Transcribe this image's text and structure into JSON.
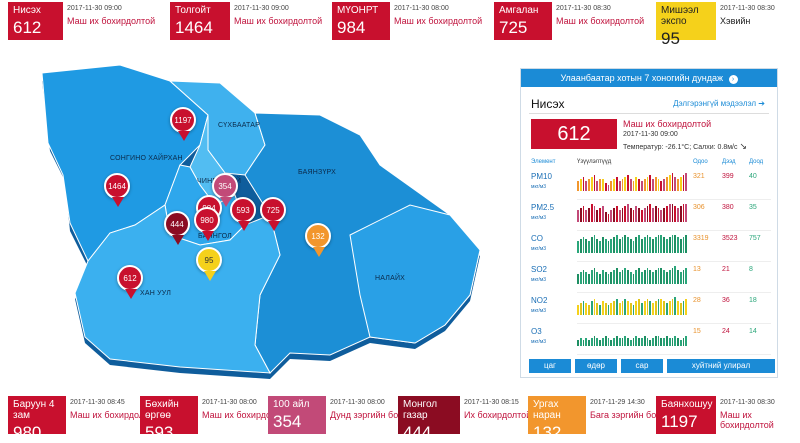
{
  "colors": {
    "very_high": "#c8102e",
    "very_high_dark": "#8b0c22",
    "high": "#c24a78",
    "moderate": "#f2962d",
    "good": "#f5d11b",
    "accent": "#1b8bd6"
  },
  "top_cards": [
    {
      "name": "Нисэх",
      "value": "612",
      "time": "2017-11-30 09:00",
      "status": "Маш их бохирдолтой",
      "color": "#c8102e"
    },
    {
      "name": "Толгойт",
      "value": "1464",
      "time": "2017-11-30 09:00",
      "status": "Маш их бохирдолтой",
      "color": "#c8102e"
    },
    {
      "name": "МҮОНРТ",
      "value": "984",
      "time": "2017-11-30 08:00",
      "status": "Маш их бохирдолтой",
      "color": "#c8102e"
    },
    {
      "name": "Амгалан",
      "value": "725",
      "time": "2017-11-30 08:30",
      "status": "Маш их бохирдолтой",
      "color": "#c8102e"
    },
    {
      "name": "Мишээл экспо",
      "value": "95",
      "time": "2017-11-30 08:30",
      "status": "Хэвийн",
      "color": "#f5d11b"
    }
  ],
  "bottom_cards": [
    {
      "name": "Баруун 4 зам",
      "value": "980",
      "time": "2017-11-30 08:45",
      "status": "Маш их бохирдолтой",
      "color": "#c8102e"
    },
    {
      "name": "Бөхийн өргөө",
      "value": "593",
      "time": "2017-11-30 08:00",
      "status": "Маш их бохирдолтой",
      "color": "#c8102e"
    },
    {
      "name": "100 айл",
      "value": "354",
      "time": "2017-11-30 08:00",
      "status": "Дунд зэргийн бохирдолтой",
      "color": "#c24a78"
    },
    {
      "name": "Монгол газар",
      "value": "444",
      "time": "2017-11-30 08:15",
      "status": "Их бохирдолтой",
      "color": "#8b0c22"
    },
    {
      "name": "Ургах наран",
      "value": "132",
      "time": "2017-11-29 14:30",
      "status": "Бага зэргийн бохирдолтой",
      "color": "#f2962d"
    },
    {
      "name": "Баянхошуу",
      "value": "1197",
      "time": "2017-11-30 08:30",
      "status": "Маш их бохирдолтой",
      "color": "#c8102e"
    }
  ],
  "map": {
    "districts": [
      "СОНГИНО ХАЙРХАН",
      "СҮХБААТАР",
      "ЧИНГЭЛТЭЙ",
      "БАЯНЗҮРХ",
      "БАЯНГОЛ",
      "ХАН УУЛ",
      "НАЛАЙХ"
    ],
    "pins": [
      {
        "value": "1197",
        "color": "#c8102e"
      },
      {
        "value": "1464",
        "color": "#c8102e"
      },
      {
        "value": "354",
        "color": "#c24a78"
      },
      {
        "value": "984",
        "color": "#c8102e"
      },
      {
        "value": "980",
        "color": "#c8102e"
      },
      {
        "value": "444",
        "color": "#8b0c22"
      },
      {
        "value": "593",
        "color": "#c8102e"
      },
      {
        "value": "725",
        "color": "#c8102e"
      },
      {
        "value": "132",
        "color": "#f2962d"
      },
      {
        "value": "95",
        "color": "#f5d11b"
      },
      {
        "value": "612",
        "color": "#c8102e"
      }
    ]
  },
  "panel": {
    "header": "Улаанбаатар хотын 7 хоногийн дундаж",
    "station": "Нисэх",
    "more_link": "Дэлгэрэнгүй мэдээлэл",
    "aqi": "612",
    "status": "Маш их бохирдолтой",
    "time": "2017-11-30 09:00",
    "weather": "Температур: -26.1°C; Салхи: 0.8м/с",
    "col_element": "Элемент",
    "col_history": "Үзүүлэлтүүд",
    "col_now": "Одоо",
    "col_high": "Дээд",
    "col_low": "Доод",
    "rows": [
      {
        "element": "PM10",
        "unit": "мкг/м3",
        "now": "321",
        "high": "399",
        "low": "40",
        "bars": [
          5,
          6,
          7,
          5,
          6,
          7,
          8,
          5,
          6,
          6,
          4,
          3,
          5,
          6,
          7,
          5,
          6,
          7,
          8,
          6,
          5,
          7,
          6,
          5,
          6,
          7,
          8,
          6,
          7,
          6,
          5,
          6,
          7,
          8,
          9,
          7,
          6,
          7,
          8,
          9
        ],
        "palette": [
          "#f2962d",
          "#c24a78",
          "#c8102e",
          "#f5d11b"
        ]
      },
      {
        "element": "PM2.5",
        "unit": "мкг/м3",
        "now": "306",
        "high": "380",
        "low": "35",
        "bars": [
          6,
          7,
          8,
          6,
          7,
          9,
          8,
          6,
          7,
          8,
          5,
          4,
          6,
          7,
          8,
          6,
          7,
          8,
          9,
          7,
          6,
          8,
          7,
          6,
          7,
          8,
          9,
          7,
          8,
          7,
          6,
          7,
          8,
          9,
          9,
          8,
          7,
          8,
          9,
          9
        ],
        "palette": [
          "#c8102e",
          "#c24a78",
          "#8b0c22"
        ]
      },
      {
        "element": "CO",
        "unit": "мкг/м3",
        "now": "3319",
        "high": "3523",
        "low": "757",
        "bars": [
          6,
          7,
          8,
          7,
          6,
          8,
          9,
          7,
          6,
          8,
          7,
          6,
          7,
          8,
          9,
          7,
          8,
          9,
          8,
          7,
          6,
          8,
          9,
          7,
          8,
          9,
          8,
          7,
          8,
          9,
          9,
          8,
          7,
          8,
          9,
          9,
          8,
          7,
          8,
          9
        ],
        "palette": [
          "#2aa67a",
          "#1e8f63"
        ]
      },
      {
        "element": "SO2",
        "unit": "мкг/м3",
        "now": "13",
        "high": "21",
        "low": "8",
        "bars": [
          5,
          6,
          7,
          6,
          5,
          7,
          8,
          6,
          5,
          7,
          6,
          5,
          6,
          7,
          8,
          6,
          7,
          8,
          7,
          6,
          5,
          7,
          8,
          6,
          7,
          8,
          7,
          6,
          7,
          8,
          8,
          7,
          6,
          7,
          8,
          9,
          7,
          6,
          7,
          8
        ],
        "palette": [
          "#2aa67a",
          "#1e8f63"
        ]
      },
      {
        "element": "NO2",
        "unit": "мкг/м3",
        "now": "28",
        "high": "36",
        "low": "18",
        "bars": [
          5,
          6,
          7,
          6,
          5,
          7,
          8,
          6,
          5,
          7,
          6,
          5,
          6,
          7,
          8,
          6,
          7,
          8,
          7,
          6,
          5,
          7,
          8,
          6,
          7,
          8,
          7,
          6,
          7,
          8,
          8,
          7,
          6,
          7,
          8,
          9,
          7,
          6,
          7,
          8
        ],
        "palette": [
          "#2aa67a",
          "#f5d11b",
          "#e0c51a"
        ]
      },
      {
        "element": "O3",
        "unit": "мкг/м3",
        "now": "15",
        "high": "24",
        "low": "14",
        "bars": [
          3,
          4,
          3,
          4,
          3,
          4,
          5,
          4,
          3,
          4,
          5,
          4,
          3,
          4,
          5,
          4,
          4,
          5,
          4,
          3,
          4,
          5,
          4,
          4,
          5,
          4,
          3,
          4,
          5,
          5,
          4,
          4,
          5,
          4,
          4,
          5,
          4,
          3,
          4,
          5
        ],
        "palette": [
          "#2aa67a",
          "#1e8f63"
        ]
      }
    ],
    "tabs": [
      "цаг",
      "өдөр",
      "сар",
      "хуйтний улирал"
    ]
  }
}
